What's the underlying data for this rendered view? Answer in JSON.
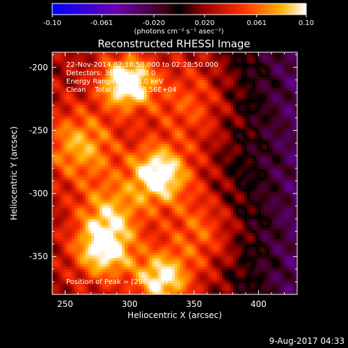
{
  "chart_data": {
    "type": "heatmap",
    "title": "Reconstructed RHESSI Image",
    "xlabel": "Heliocentric X (arcsec)",
    "ylabel": "Heliocentric Y (arcsec)",
    "xlim": [
      240,
      430
    ],
    "ylim": [
      -380,
      -188
    ],
    "x_ticks": [
      250,
      300,
      350,
      400
    ],
    "y_ticks": [
      -200,
      -250,
      -300,
      -350
    ],
    "colorbar": {
      "range": [
        -0.1,
        0.1
      ],
      "ticks": [
        "-0.10",
        "-0.061",
        "-0.020",
        "0.020",
        "0.061",
        "0.10"
      ],
      "units": "(photons cm⁻² s⁻¹ asec⁻²)"
    },
    "info_lines": [
      "22-Nov-2014 02:18:50.000 to 02:28:50.000",
      "Detectors: 3F 6F 9F, Att 0",
      "Energy Range: 3.0 - 6.0 keV",
      "Clean    Total Counts: 8.56E+04"
    ],
    "peak_label": "Position of Peak = [298,-219]",
    "peak": {
      "x": 298,
      "y": -219
    },
    "sources": [
      {
        "x": 298,
        "y": -212,
        "amp": 0.095,
        "r": 14
      },
      {
        "x": 323,
        "y": -285,
        "amp": 0.085,
        "r": 16
      },
      {
        "x": 280,
        "y": -345,
        "amp": 0.075,
        "r": 16
      },
      {
        "x": 325,
        "y": -368,
        "amp": 0.075,
        "r": 15
      },
      {
        "x": 262,
        "y": -262,
        "amp": 0.055,
        "r": 20
      },
      {
        "x": 285,
        "y": -315,
        "amp": 0.05,
        "r": 18
      },
      {
        "x": 355,
        "y": -330,
        "amp": 0.035,
        "r": 20
      },
      {
        "x": 345,
        "y": -230,
        "amp": 0.03,
        "r": 22
      }
    ],
    "colors": {
      "background": "#000000",
      "text": "#ffffff"
    }
  },
  "footer": {
    "date": "9-Aug-2017 04:33"
  }
}
